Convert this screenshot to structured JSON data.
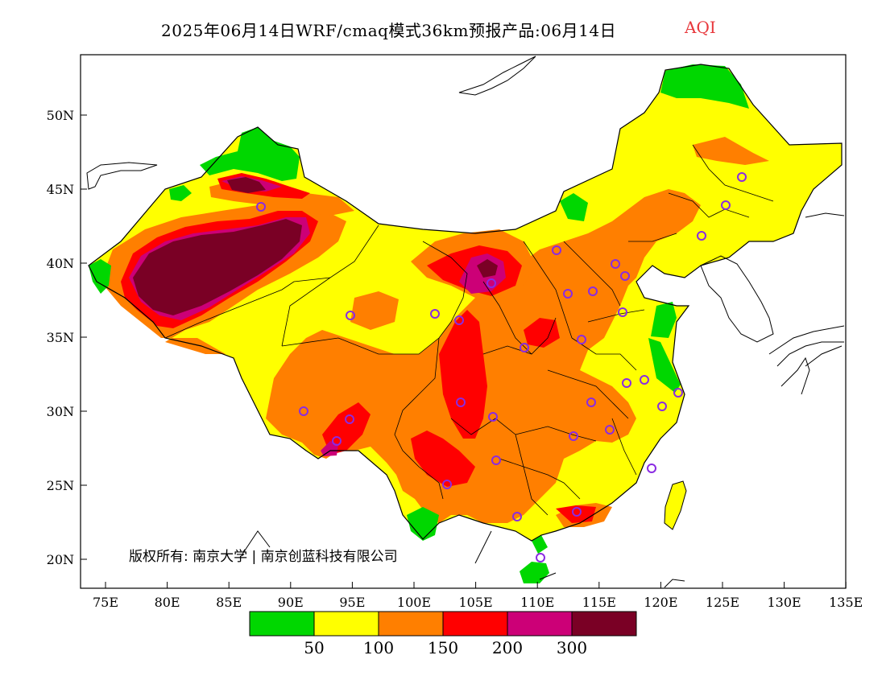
{
  "title": {
    "main": "2025年06月14日WRF/cmaq模式36km预报产品:06月14日",
    "variable": "AQI",
    "variable_color": "#e8383c"
  },
  "axes": {
    "y_ticks": [
      "50N",
      "45N",
      "40N",
      "35N",
      "30N",
      "25N",
      "20N"
    ],
    "x_ticks": [
      "75E",
      "80E",
      "85E",
      "90E",
      "95E",
      "100E",
      "105E",
      "110E",
      "115E",
      "120E",
      "125E",
      "130E",
      "135E"
    ]
  },
  "copyright": "版权所有: 南京大学 | 南京创蓝科技有限公司",
  "legend": {
    "colors": [
      "#00d700",
      "#ffff00",
      "#ff7f00",
      "#ff0000",
      "#cc0077",
      "#7a0025"
    ],
    "labels": [
      "50",
      "100",
      "150",
      "200",
      "300"
    ]
  },
  "category_colors": {
    "good": "#00d700",
    "moderate": "#ffff00",
    "sensitive": "#ff7f00",
    "unhealthy": "#ff0000",
    "very_unhealthy": "#cc0077",
    "hazardous": "#7a0025",
    "station_marker": "#8a2be2"
  }
}
